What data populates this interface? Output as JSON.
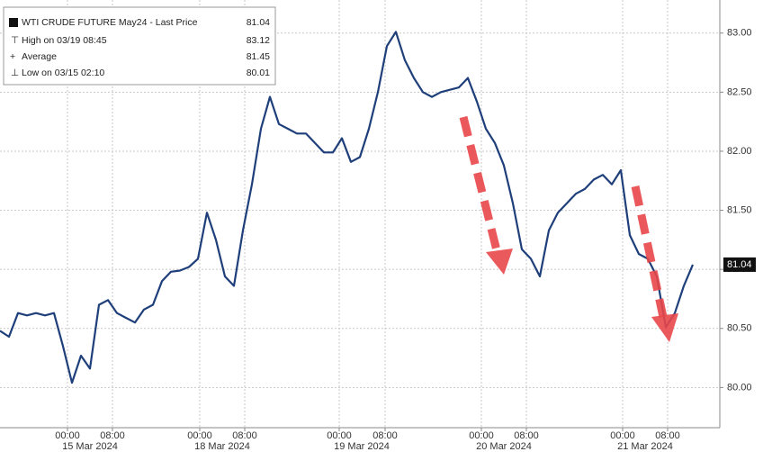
{
  "chart_data": {
    "type": "line",
    "legend": [
      {
        "label": "WTI CRUDE FUTURE May24 - Last Price",
        "value": 81.04
      },
      {
        "label": "High on 03/19 08:45",
        "value": 83.12
      },
      {
        "label": "Average",
        "value": 81.45
      },
      {
        "label": "Low on 03/15 02:10",
        "value": 80.01
      }
    ],
    "series": [
      {
        "name": "WTI CRUDE FUTURE May24 - Last Price",
        "color": "#1f3f7a",
        "values": [
          80.48,
          80.43,
          80.63,
          80.61,
          80.63,
          80.61,
          80.63,
          80.35,
          80.04,
          80.27,
          80.16,
          80.7,
          80.74,
          80.63,
          80.59,
          80.55,
          80.66,
          80.7,
          80.9,
          80.98,
          80.99,
          81.02,
          81.09,
          81.48,
          81.25,
          80.94,
          80.86,
          81.33,
          81.72,
          82.19,
          82.46,
          82.23,
          82.19,
          82.15,
          82.15,
          82.07,
          81.99,
          81.99,
          82.11,
          81.91,
          81.95,
          82.19,
          82.5,
          82.89,
          83.01,
          82.77,
          82.62,
          82.5,
          82.46,
          82.5,
          82.52,
          82.54,
          82.62,
          82.42,
          82.19,
          82.07,
          81.88,
          81.56,
          81.17,
          81.09,
          80.94,
          81.33,
          81.48,
          81.56,
          81.64,
          81.68,
          81.76,
          81.8,
          81.72,
          81.84,
          81.29,
          81.13,
          81.09,
          80.94,
          80.51,
          80.63,
          80.86,
          81.04
        ]
      }
    ],
    "xlim": [
      0,
      80
    ],
    "xticks": [
      {
        "value": 7.5,
        "label": "00:00"
      },
      {
        "value": 12.5,
        "label": "08:00"
      },
      {
        "value": 22.2,
        "label": "00:00"
      },
      {
        "value": 27.2,
        "label": "08:00"
      },
      {
        "value": 37.7,
        "label": "00:00"
      },
      {
        "value": 42.8,
        "label": "08:00"
      },
      {
        "value": 53.5,
        "label": "00:00"
      },
      {
        "value": 58.5,
        "label": "08:00"
      },
      {
        "value": 69.2,
        "label": "00:00"
      },
      {
        "value": 74.2,
        "label": "08:00"
      }
    ],
    "date_labels": [
      {
        "value": 10,
        "label": "15 Mar 2024"
      },
      {
        "value": 24.7,
        "label": "18 Mar 2024"
      },
      {
        "value": 40.2,
        "label": "19 Mar 2024"
      },
      {
        "value": 56,
        "label": "20 Mar 2024"
      },
      {
        "value": 71.7,
        "label": "21 Mar 2024"
      }
    ],
    "ylim": [
      79.66,
      83.28
    ],
    "yticks": [
      {
        "value": 80,
        "label": "80.00"
      },
      {
        "value": 80.5,
        "label": "80.50"
      },
      {
        "value": 81,
        "label": "81.00"
      },
      {
        "value": 81.5,
        "label": "81.50"
      },
      {
        "value": 82,
        "label": "82.00"
      },
      {
        "value": 82.5,
        "label": "82.50"
      },
      {
        "value": 83,
        "label": "83.00"
      }
    ],
    "grid": true
  }
}
